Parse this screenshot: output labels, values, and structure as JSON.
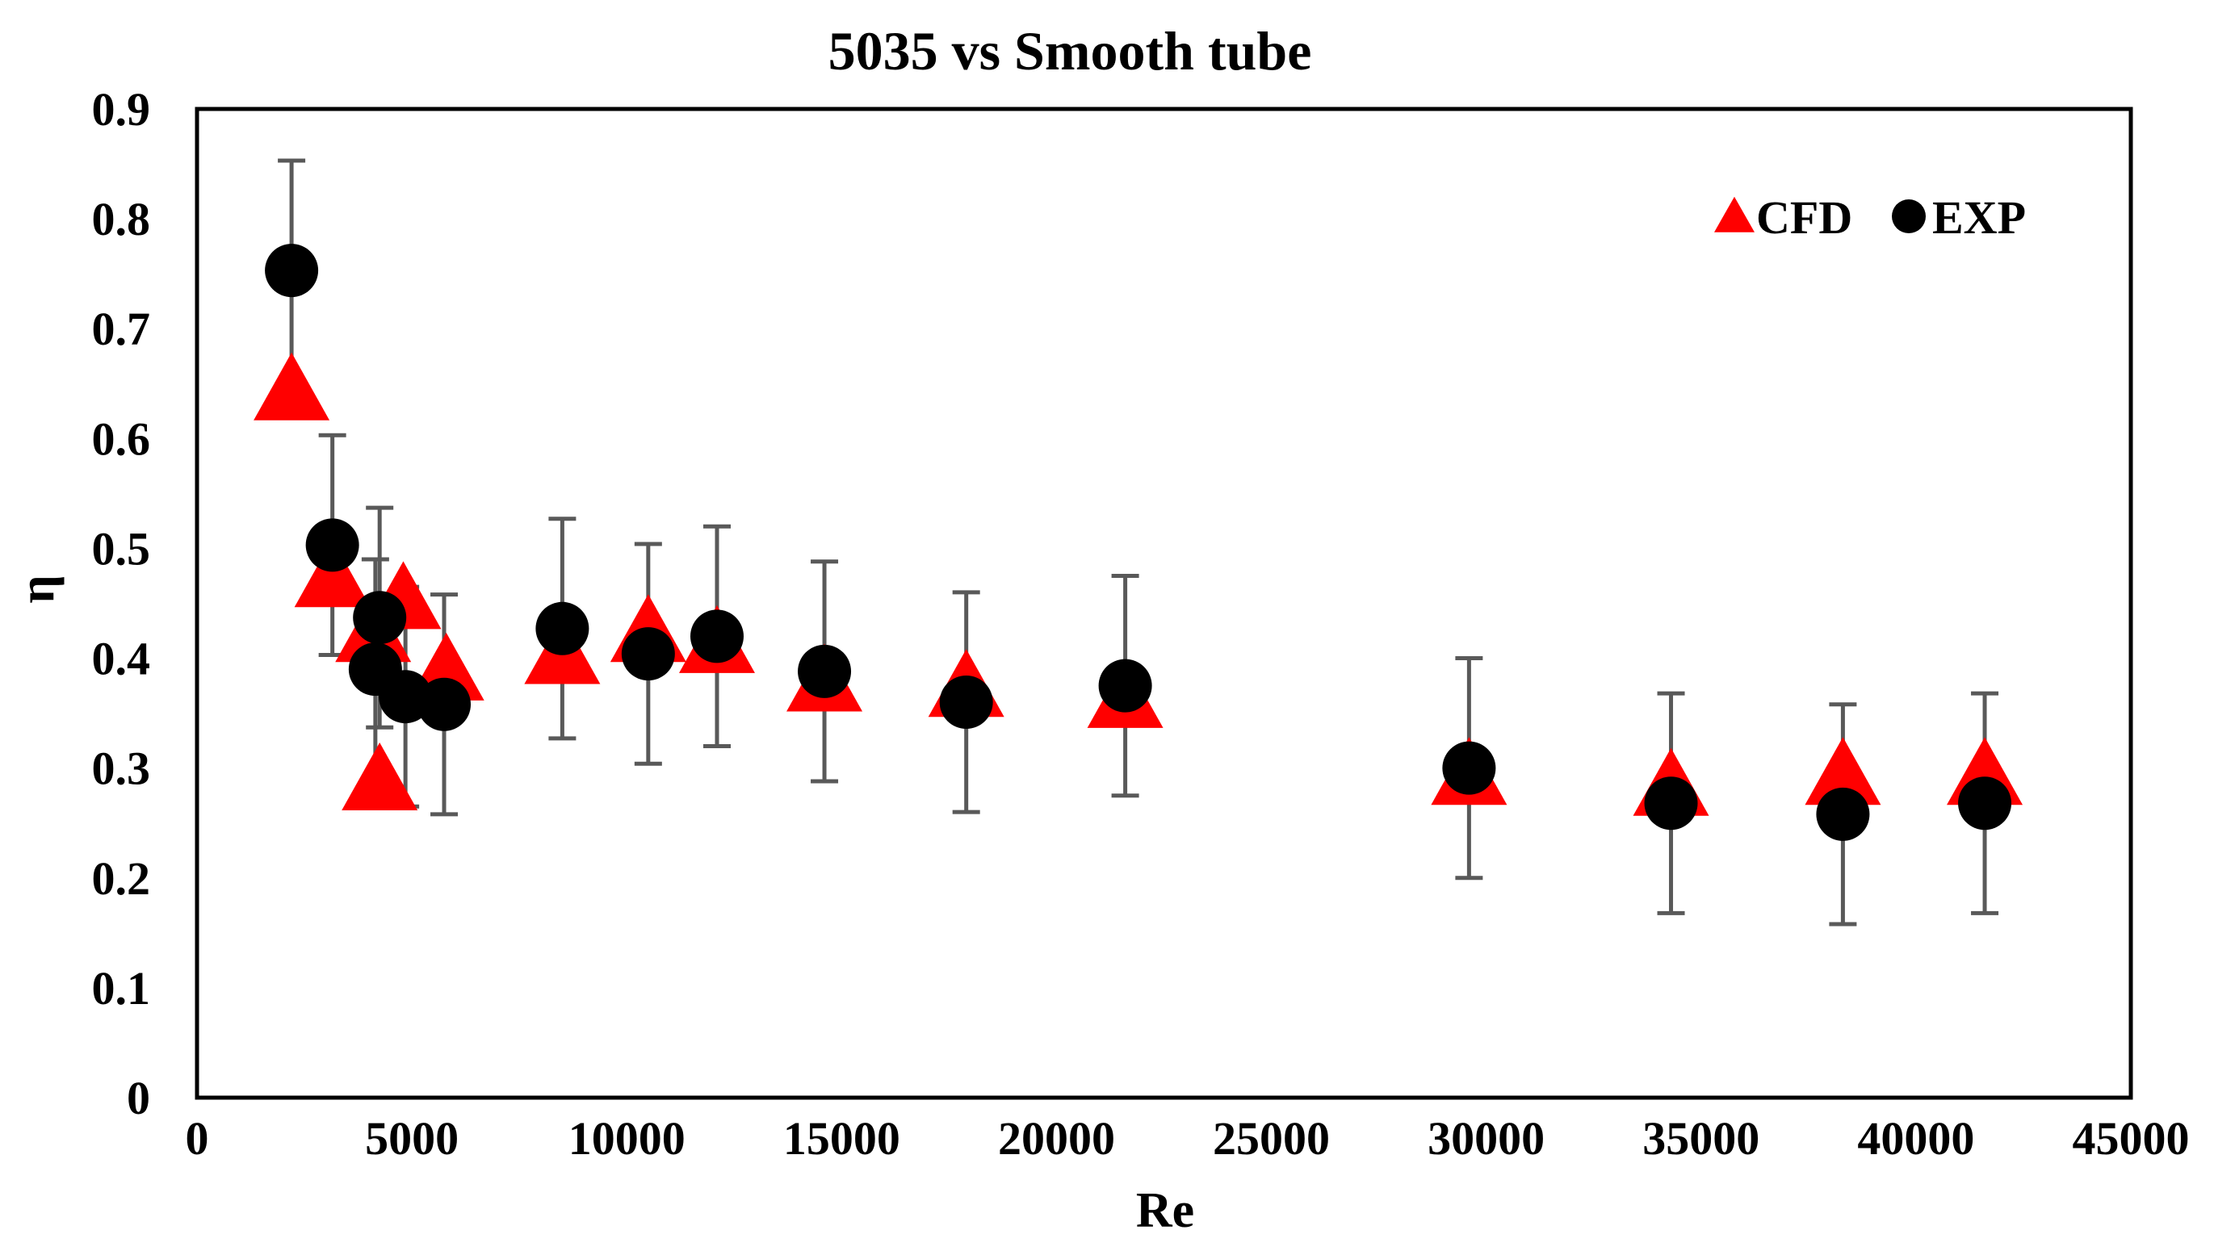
{
  "chart_data": {
    "type": "scatter",
    "title": "5035 vs Smooth tube",
    "xlabel": "Re",
    "ylabel": "η",
    "xlim": [
      0,
      45000
    ],
    "ylim": [
      0,
      0.9
    ],
    "x_ticks": [
      "0",
      "5000",
      "10000",
      "15000",
      "20000",
      "25000",
      "30000",
      "35000",
      "40000",
      "45000"
    ],
    "y_ticks": [
      "0",
      "0.1",
      "0.2",
      "0.3",
      "0.4",
      "0.5",
      "0.6",
      "0.7",
      "0.8",
      "0.9"
    ],
    "grid": false,
    "legend_position": "top-right",
    "series": [
      {
        "name": "CFD",
        "marker": "triangle",
        "color": "#ff0000",
        "points": [
          {
            "x": 2200,
            "y": 0.64
          },
          {
            "x": 3150,
            "y": 0.47
          },
          {
            "x": 4100,
            "y": 0.42
          },
          {
            "x": 4250,
            "y": 0.285
          },
          {
            "x": 4800,
            "y": 0.45
          },
          {
            "x": 5800,
            "y": 0.385
          },
          {
            "x": 8500,
            "y": 0.4
          },
          {
            "x": 10500,
            "y": 0.42
          },
          {
            "x": 12100,
            "y": 0.41
          },
          {
            "x": 14600,
            "y": 0.375
          },
          {
            "x": 17900,
            "y": 0.37
          },
          {
            "x": 21600,
            "y": 0.36
          },
          {
            "x": 29600,
            "y": 0.29
          },
          {
            "x": 34300,
            "y": 0.28
          },
          {
            "x": 38300,
            "y": 0.29
          },
          {
            "x": 41600,
            "y": 0.29
          }
        ]
      },
      {
        "name": "EXP",
        "marker": "circle",
        "color": "#000000",
        "error_bar": 0.1,
        "points": [
          {
            "x": 2200,
            "y": 0.753
          },
          {
            "x": 3150,
            "y": 0.503
          },
          {
            "x": 4150,
            "y": 0.39
          },
          {
            "x": 4250,
            "y": 0.437
          },
          {
            "x": 4850,
            "y": 0.365
          },
          {
            "x": 5750,
            "y": 0.358
          },
          {
            "x": 8500,
            "y": 0.427
          },
          {
            "x": 10500,
            "y": 0.404
          },
          {
            "x": 12100,
            "y": 0.42
          },
          {
            "x": 14600,
            "y": 0.388
          },
          {
            "x": 17900,
            "y": 0.36
          },
          {
            "x": 21600,
            "y": 0.375
          },
          {
            "x": 29600,
            "y": 0.3
          },
          {
            "x": 34300,
            "y": 0.268
          },
          {
            "x": 38300,
            "y": 0.258
          },
          {
            "x": 41600,
            "y": 0.268
          }
        ]
      }
    ]
  }
}
